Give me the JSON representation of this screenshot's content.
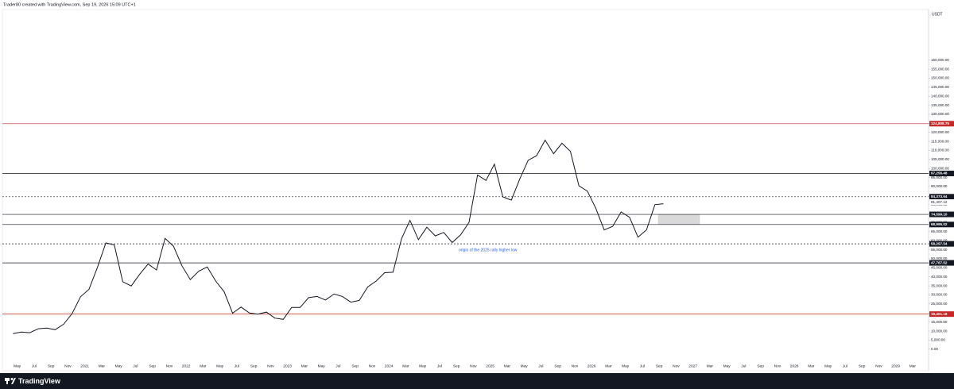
{
  "header": "Trader80 created with TradingView.com, Sep 19, 2026 15:09 UTC+1",
  "footer": "TradingView",
  "chart_data": {
    "type": "line",
    "currency": "USDT",
    "annotation": "origin of the 2025 rally higher low",
    "color": "#131722",
    "x": [
      "2020-04",
      "2020-05",
      "2020-06",
      "2020-07",
      "2020-08",
      "2020-09",
      "2020-10",
      "2020-11",
      "2020-12",
      "2021-01",
      "2021-02",
      "2021-03",
      "2021-04",
      "2021-05",
      "2021-06",
      "2021-07",
      "2021-08",
      "2021-09",
      "2021-10",
      "2021-11",
      "2021-12",
      "2022-01",
      "2022-02",
      "2022-03",
      "2022-04",
      "2022-05",
      "2022-06",
      "2022-07",
      "2022-08",
      "2022-09",
      "2022-10",
      "2022-11",
      "2022-12",
      "2023-01",
      "2023-02",
      "2023-03",
      "2023-04",
      "2023-05",
      "2023-06",
      "2023-07",
      "2023-08",
      "2023-09",
      "2023-10",
      "2023-11",
      "2023-12",
      "2024-01",
      "2024-02",
      "2024-03",
      "2024-04",
      "2024-05",
      "2024-06",
      "2024-07",
      "2024-08",
      "2024-09",
      "2024-10",
      "2024-11",
      "2024-12",
      "2025-01",
      "2025-02",
      "2025-03",
      "2025-04",
      "2025-05",
      "2025-06",
      "2025-07",
      "2025-08",
      "2025-09",
      "2025-10",
      "2025-11",
      "2025-12",
      "2026-01",
      "2026-02",
      "2026-03",
      "2026-04",
      "2026-05",
      "2026-06",
      "2026-07",
      "2026-08",
      "2026-09"
    ],
    "values": [
      8600,
      9450,
      9100,
      11300,
      11650,
      10780,
      13800,
      19700,
      29000,
      33100,
      45200,
      58800,
      57700,
      37300,
      35000,
      41500,
      47100,
      43800,
      61300,
      57000,
      46200,
      38500,
      43200,
      45500,
      37700,
      31800,
      19900,
      23300,
      20000,
      19400,
      20500,
      17200,
      16500,
      23100,
      23100,
      28500,
      29200,
      27200,
      30500,
      29200,
      26000,
      27000,
      34500,
      37700,
      42300,
      42600,
      61200,
      71300,
      60600,
      67500,
      62700,
      64600,
      59000,
      63300,
      70200,
      96400,
      93400,
      102400,
      84300,
      82500,
      94200,
      104600,
      107100,
      115700,
      108200,
      114000,
      109500,
      90400,
      87500,
      78000,
      66000,
      68000,
      76000,
      73000,
      62000,
      66000,
      80000,
      80500
    ],
    "xtick_labels": [
      "May",
      "Jul",
      "Sep",
      "Nov",
      "2021",
      "Mar",
      "May",
      "Jul",
      "Sep",
      "Nov",
      "2022",
      "Mar",
      "May",
      "Jul",
      "Sep",
      "Nov",
      "2023",
      "Mar",
      "May",
      "Jul",
      "Sep",
      "Nov",
      "2024",
      "Mar",
      "May",
      "Jul",
      "Sep",
      "Nov",
      "2025",
      "Mar",
      "May",
      "Jul",
      "Sep",
      "Nov",
      "2026",
      "Mar",
      "May",
      "Jul",
      "Sep",
      "Nov",
      "2027",
      "Mar",
      "May",
      "Jul",
      "Sep",
      "Nov",
      "2028",
      "Mar",
      "May",
      "Jul",
      "Sep",
      "Nov",
      "2029",
      "Mar"
    ],
    "ylim": [
      -8000,
      188000
    ],
    "yticks": [
      {
        "value": 0,
        "label": "0.00"
      },
      {
        "value": 5000,
        "label": "5,000.00"
      },
      {
        "value": 10000,
        "label": "10,000.00"
      },
      {
        "value": 15000,
        "label": "15,000.00"
      },
      {
        "value": 20000,
        "label": "20,000.00"
      },
      {
        "value": 25000,
        "label": "25,000.00"
      },
      {
        "value": 30000,
        "label": "30,000.00"
      },
      {
        "value": 35000,
        "label": "35,000.00"
      },
      {
        "value": 40000,
        "label": "40,000.00"
      },
      {
        "value": 45000,
        "label": "45,000.00"
      },
      {
        "value": 50000,
        "label": "50,000.00"
      },
      {
        "value": 55000,
        "label": "55,000.00"
      },
      {
        "value": 60000,
        "label": "60,000.00"
      },
      {
        "value": 65000,
        "label": "65,000.00"
      },
      {
        "value": 70000,
        "label": "70,000.00"
      },
      {
        "value": 75000,
        "label": "75,000.00"
      },
      {
        "value": 80000,
        "label": "80,000.00"
      },
      {
        "value": 85000,
        "label": "85,000.00"
      },
      {
        "value": 90000,
        "label": "90,000.00"
      },
      {
        "value": 95000,
        "label": "95,000.00"
      },
      {
        "value": 100000,
        "label": "100,000.00"
      },
      {
        "value": 105000,
        "label": "105,000.00"
      },
      {
        "value": 110000,
        "label": "110,000.00"
      },
      {
        "value": 115000,
        "label": "115,000.00"
      },
      {
        "value": 120000,
        "label": "120,000.00"
      },
      {
        "value": 125000,
        "label": "125,000.00"
      },
      {
        "value": 130000,
        "label": "130,000.00"
      },
      {
        "value": 135000,
        "label": "135,000.00"
      },
      {
        "value": 140000,
        "label": "140,000.00"
      },
      {
        "value": 145000,
        "label": "145,000.00"
      },
      {
        "value": 150000,
        "label": "150,000.00"
      },
      {
        "value": 155000,
        "label": "155,000.00"
      },
      {
        "value": 160000,
        "label": "160,000.00"
      }
    ],
    "levels": [
      {
        "value": 124808.75,
        "label": "124,808.75",
        "color": "#c62828",
        "style": "solid"
      },
      {
        "value": 97256.48,
        "label": "97,256.48",
        "color": "#131722",
        "style": "solid"
      },
      {
        "value": 84373.64,
        "label": "84,373.64",
        "color": "#131722",
        "style": "dashed"
      },
      {
        "value": 74599.1,
        "label": "74,599.10",
        "color": "#131722",
        "style": "solid"
      },
      {
        "value": 68995.02,
        "label": "68,995.02",
        "color": "#131722",
        "style": "solid"
      },
      {
        "value": 58297.54,
        "label": "58,297.54",
        "color": "#131722",
        "style": "dashed"
      },
      {
        "value": 47767.52,
        "label": "47,767.52",
        "color": "#131722",
        "style": "solid"
      },
      {
        "value": 19401.18,
        "label": "19,401.18",
        "color": "#c62828",
        "style": "solid"
      }
    ],
    "last_price": {
      "value": 81407.12,
      "label": "81,407.12"
    }
  }
}
